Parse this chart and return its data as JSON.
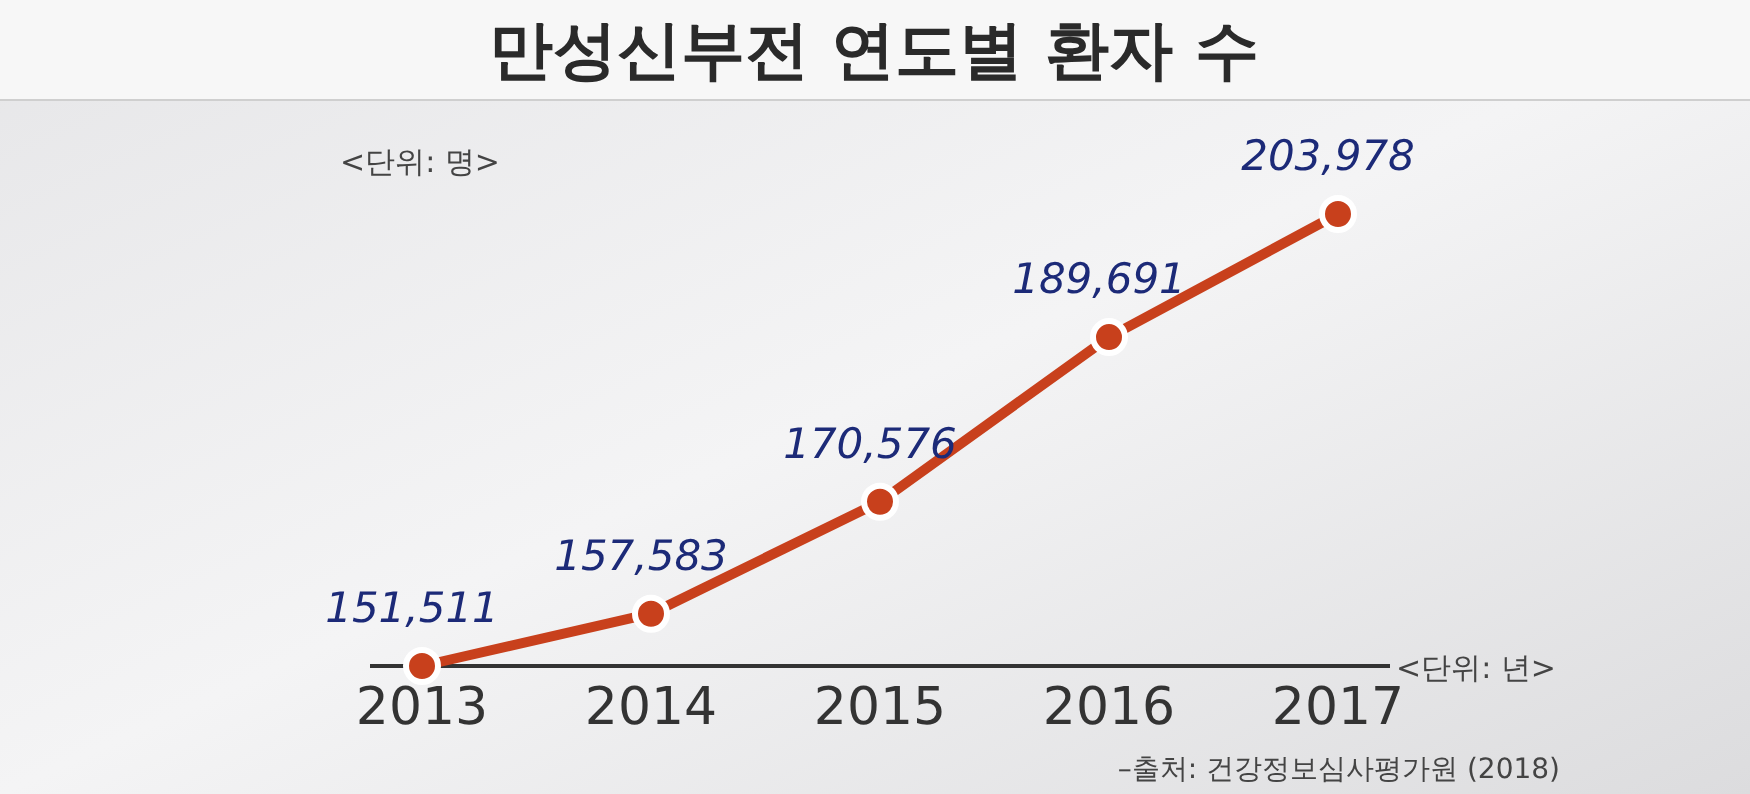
{
  "chart_data": {
    "type": "line",
    "title": "만성신부전 연도별 환자 수",
    "ylabel": "<단위: 명>",
    "xlabel": "<단위: 년>",
    "categories": [
      "2013",
      "2014",
      "2015",
      "2016",
      "2017"
    ],
    "series": [
      {
        "color": "#c8401c",
        "values": [
          151511,
          157583,
          170576,
          189691,
          203978
        ],
        "value_labels": [
          "151,511",
          "157,583",
          "170,576",
          "189,691",
          "203,978"
        ]
      }
    ],
    "marker": "circle",
    "annotations": [
      "–출처: 건강정보심사평가원 (2018)"
    ]
  }
}
